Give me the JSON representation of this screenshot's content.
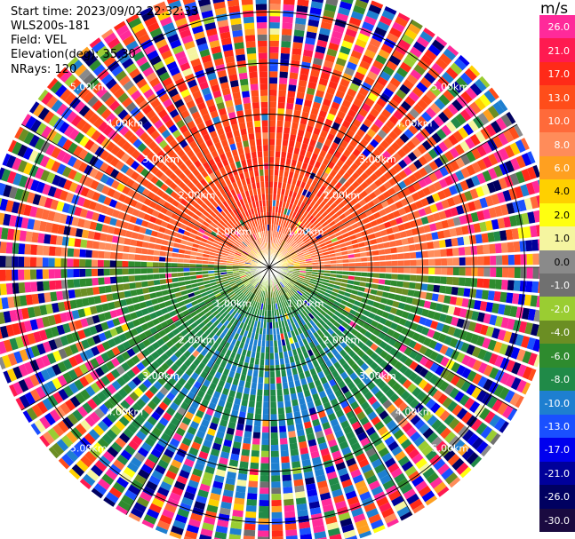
{
  "header": {
    "start_time": "Start time: 2023/09/02 22:32:33",
    "instrument": "WLS200s-181",
    "field": "Field: VEL",
    "elevation": "Elevation(deg): 35.30",
    "nrays": "NRays: 120"
  },
  "colorbar": {
    "unit": "m/s",
    "ticks": [
      "26.0",
      "21.0",
      "17.0",
      "13.0",
      "10.0",
      "8.0",
      "6.0",
      "4.0",
      "2.0",
      "1.0",
      "0.0",
      "-1.0",
      "-2.0",
      "-4.0",
      "-6.0",
      "-8.0",
      "-10.0",
      "-13.0",
      "-17.0",
      "-21.0",
      "-26.0",
      "-30.0"
    ],
    "colors": [
      "#ff2a9a",
      "#ff1a50",
      "#ff2a18",
      "#ff4d1a",
      "#ff6a3a",
      "#ff8c5a",
      "#ffa020",
      "#ffd000",
      "#ffff10",
      "#f5f5a0",
      "#8a8a8a",
      "#707070",
      "#9acd32",
      "#6b8e23",
      "#2e8b2e",
      "#208a48",
      "#1e7fd0",
      "#1a50ff",
      "#0000ee",
      "#00009a",
      "#000060",
      "#1a0a40"
    ]
  },
  "chart_data": {
    "type": "ppi",
    "field": "VEL",
    "units": "m/s",
    "nrays": 120,
    "range_rings_km": [
      1.0,
      2.0,
      3.0,
      4.0,
      5.0
    ],
    "ring_labels": [
      "1.00km",
      "2.00km",
      "3.00km",
      "4.00km",
      "5.00km"
    ],
    "max_range_km": 5.6,
    "north_sector_azimuth_deg": [
      300,
      60
    ],
    "north_sector_velocity_ms": [
      8.0,
      13.0
    ],
    "south_sector_azimuth_deg": [
      120,
      240
    ],
    "south_sector_velocity_ms": [
      -10.0,
      -6.0
    ],
    "clean_range_km": 3.0
  }
}
